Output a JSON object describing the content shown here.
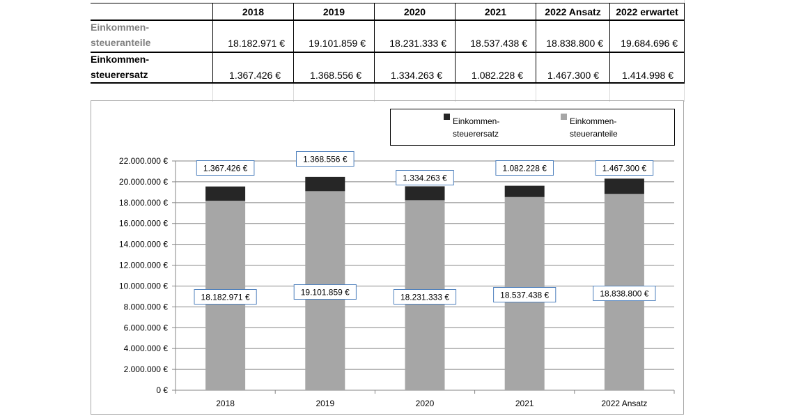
{
  "table": {
    "headers": [
      "2018",
      "2019",
      "2020",
      "2021",
      "2022 Ansatz",
      "2022 erwartet"
    ],
    "rows": [
      {
        "label_line1": "Einkommen-",
        "label_line2": "steueranteile",
        "values": [
          "18.182.971 €",
          "19.101.859 €",
          "18.231.333 €",
          "18.537.438 €",
          "18.838.800 €",
          "19.684.696 €"
        ]
      },
      {
        "label_line1": "Einkommen-",
        "label_line2": "steuerersatz",
        "values": [
          "1.367.426 €",
          "1.368.556 €",
          "1.334.263 €",
          "1.082.228 €",
          "1.467.300 €",
          "1.414.998 €"
        ]
      }
    ]
  },
  "chart_data": {
    "type": "bar",
    "stacked": true,
    "categories": [
      "2018",
      "2019",
      "2020",
      "2021",
      "2022 Ansatz"
    ],
    "series": [
      {
        "name_line1": "Einkommen-",
        "name_line2": "steueranteile",
        "color": "#a6a6a6",
        "values": [
          18182971,
          19101859,
          18231333,
          18537438,
          18838800
        ],
        "labels": [
          "18.182.971 €",
          "19.101.859 €",
          "18.231.333 €",
          "18.537.438 €",
          "18.838.800 €"
        ]
      },
      {
        "name_line1": "Einkommen-",
        "name_line2": "steuerersatz",
        "color": "#262626",
        "values": [
          1367426,
          1368556,
          1334263,
          1082228,
          1467300
        ],
        "labels": [
          "1.367.426 €",
          "1.368.556 €",
          "1.334.263 €",
          "1.082.228 €",
          "1.467.300 €"
        ]
      }
    ],
    "ylim": [
      0,
      22000000
    ],
    "yticks": [
      0,
      2000000,
      4000000,
      6000000,
      8000000,
      10000000,
      12000000,
      14000000,
      16000000,
      18000000,
      20000000,
      22000000
    ],
    "ytick_labels": [
      "0 €",
      "2.000.000 €",
      "4.000.000 €",
      "6.000.000 €",
      "8.000.000 €",
      "10.000.000 €",
      "12.000.000 €",
      "14.000.000 €",
      "16.000.000 €",
      "18.000.000 €",
      "20.000.000 €",
      "22.000.000 €"
    ],
    "grid": true,
    "legend_position": "top-right",
    "data_label_color": "#4f81bd"
  }
}
